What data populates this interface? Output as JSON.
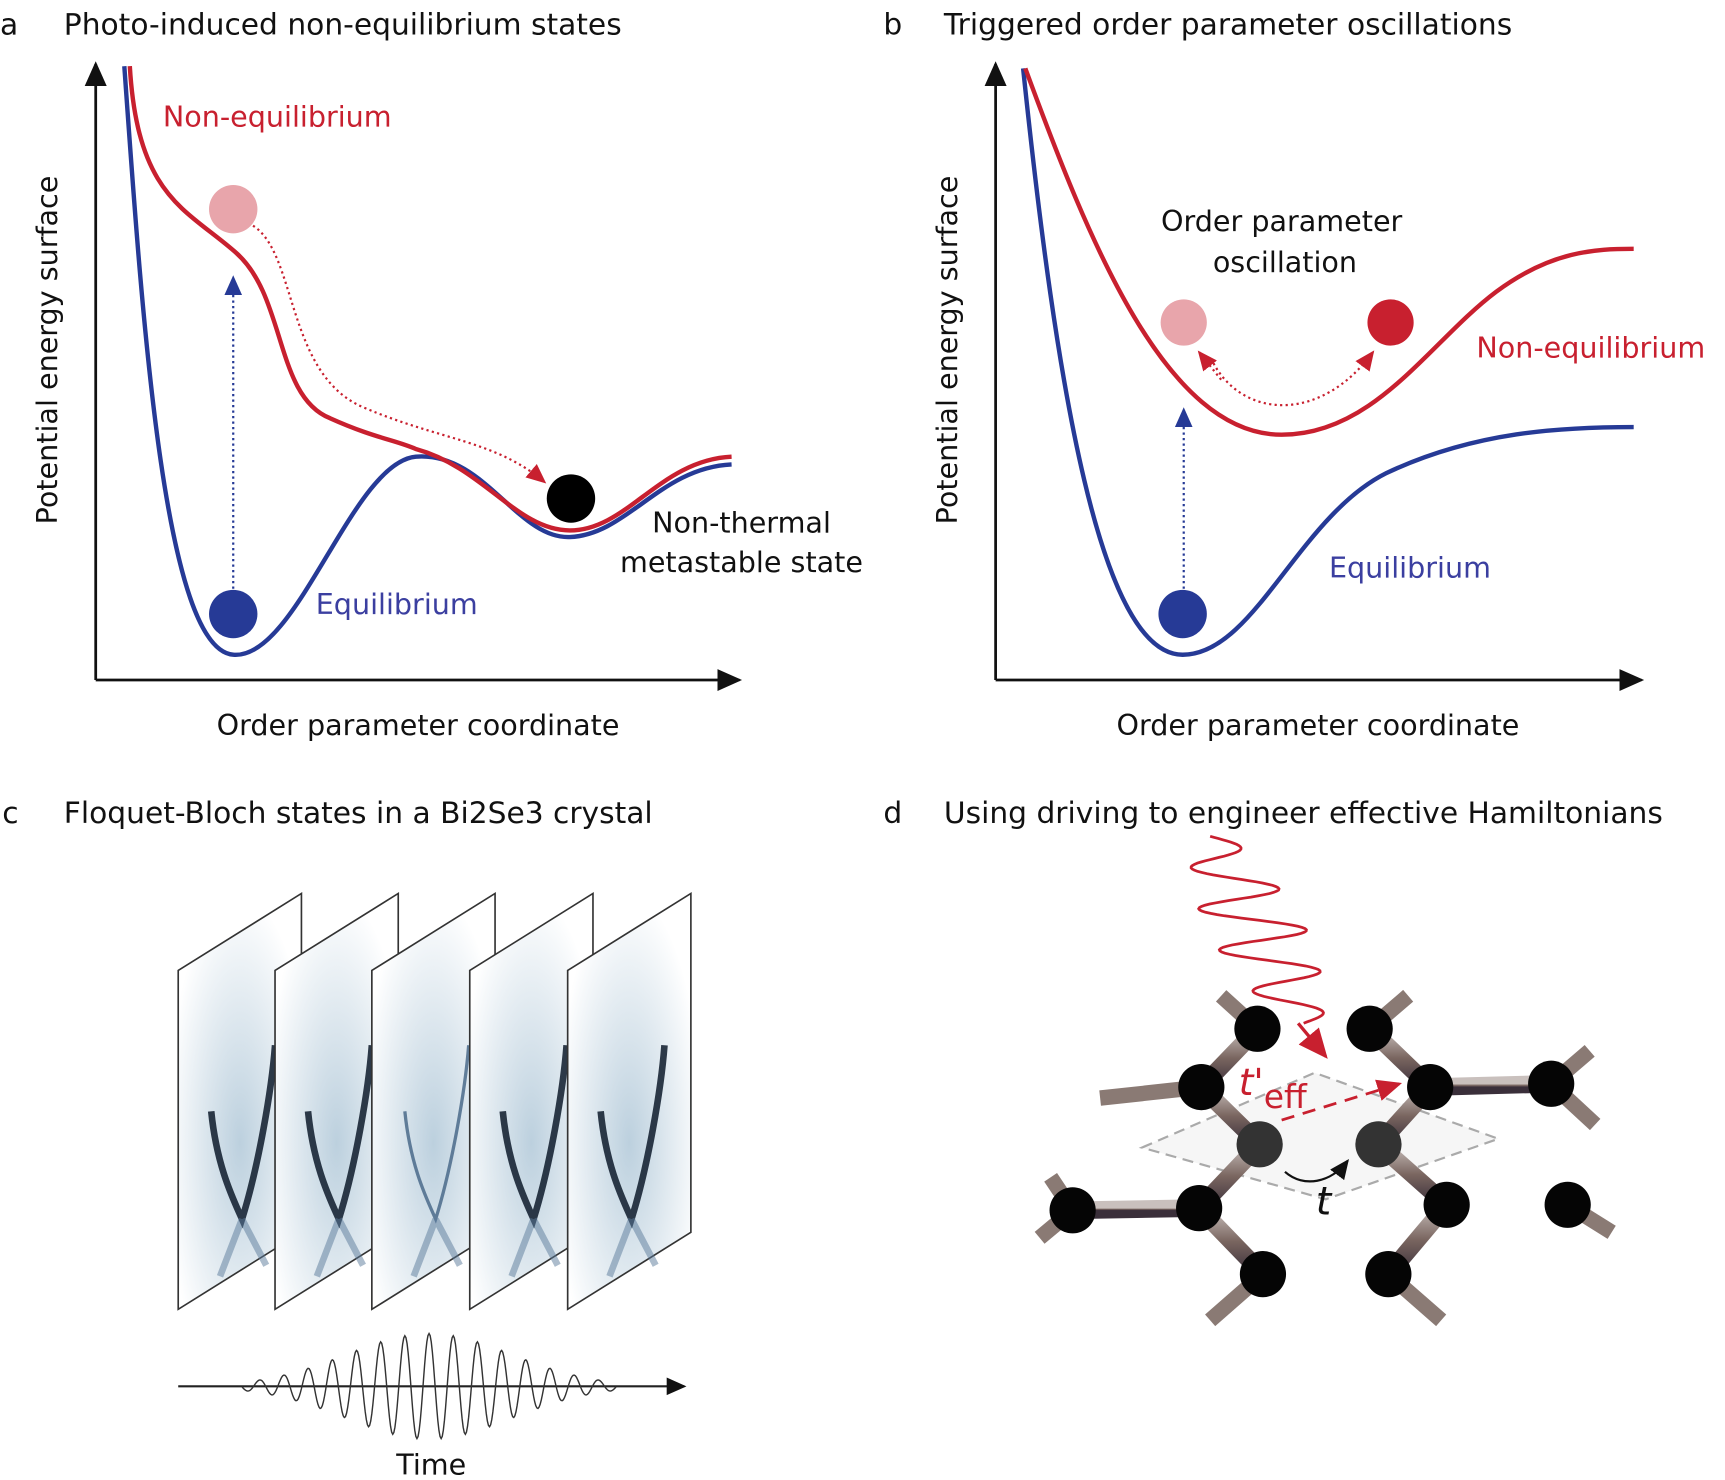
{
  "colors": {
    "red": "#c8202f",
    "blue": "#263a96",
    "pink": "#e8a5ab",
    "black": "#000000"
  },
  "panel_a": {
    "letter": "a",
    "title": "Photo-induced non-equilibrium states",
    "ylabel": "Potential energy surface",
    "xlabel": "Order parameter coordinate",
    "red_label": "Non-equilibrium",
    "blue_label": "Equilibrium",
    "state_label_1": "Non-thermal",
    "state_label_2": "metastable state"
  },
  "panel_b": {
    "letter": "b",
    "title": "Triggered order parameter oscillations",
    "ylabel": "Potential energy surface",
    "xlabel": "Order parameter coordinate",
    "osc_label_1": "Order parameter",
    "osc_label_2": "oscillation",
    "red_label": "Non-equilibrium",
    "blue_label": "Equilibrium"
  },
  "panel_c": {
    "letter": "c",
    "title": "Floquet-Bloch states in a Bi2Se3 crystal",
    "xlabel": "Time"
  },
  "panel_d": {
    "letter": "d",
    "title": "Using driving to engineer effective Hamiltonians",
    "teff_main": "t'",
    "teff_sub": "eff",
    "t_label": "t"
  }
}
